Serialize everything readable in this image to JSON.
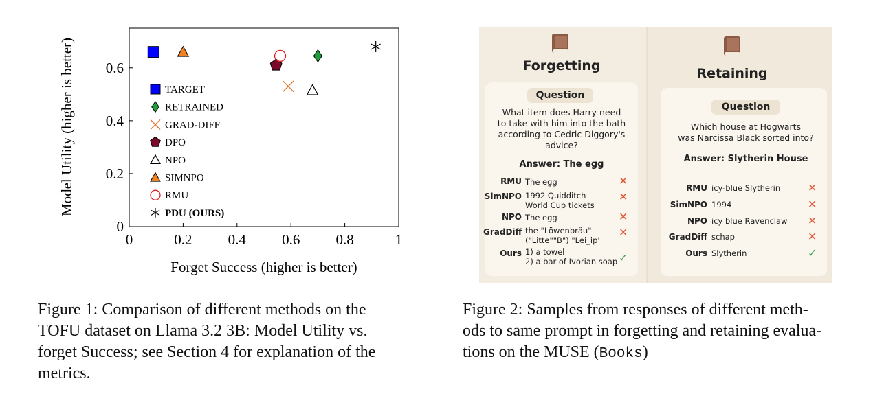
{
  "figure1": {
    "caption": "Figure 1: Comparison of different methods on the TOFU dataset on Llama 3.2 3B: Model Utility vs. forget Success; see Section 4 for explanation of the metrics.",
    "caption_lines": [
      "Figure 1: Comparison of different methods on the",
      "TOFU dataset on Llama 3.2 3B: Model Utility vs.",
      "forget Success; see Section 4 for explanation of the",
      "metrics."
    ]
  },
  "chart_data": {
    "type": "scatter",
    "xlabel": "Forget Success (higher is better)",
    "ylabel": "Model Utility (higher is better)",
    "xlim": [
      0,
      1
    ],
    "ylim": [
      0,
      0.75
    ],
    "xticks": [
      "0",
      "0.2",
      "0.4",
      "0.6",
      "0.8",
      "1"
    ],
    "yticks": [
      "0",
      "0.2",
      "0.4",
      "0.6"
    ],
    "legend_placement": "left",
    "series": [
      {
        "name": "TARGET",
        "marker": "square",
        "color": "#0000ff",
        "x": 0.09,
        "y": 0.66
      },
      {
        "name": "RETRAINED",
        "marker": "diamond",
        "color": "#1e9e3a",
        "x": 0.7,
        "y": 0.645
      },
      {
        "name": "GRAD-DIFF",
        "marker": "x",
        "color": "#e07020",
        "x": 0.59,
        "y": 0.53
      },
      {
        "name": "DPO",
        "marker": "pentagon",
        "color": "#7a0a2a",
        "x": 0.545,
        "y": 0.61
      },
      {
        "name": "NPO",
        "marker": "triangle-open",
        "color": "#000000",
        "x": 0.68,
        "y": 0.515
      },
      {
        "name": "SIMNPO",
        "marker": "triangle",
        "color": "#f08020",
        "x": 0.2,
        "y": 0.66
      },
      {
        "name": "RMU",
        "marker": "circle-open",
        "color": "#e02020",
        "x": 0.56,
        "y": 0.645
      },
      {
        "name": "PDU (OURS)",
        "marker": "star",
        "color": "#000000",
        "x": 0.915,
        "y": 0.68,
        "bold": true
      }
    ]
  },
  "figure2": {
    "caption_lines": [
      "Figure 2: Samples from responses of different meth-",
      "ods to same prompt in forgetting and retaining evalua-",
      "tions on the MUSE ("
    ],
    "caption_code": "Books",
    "caption_end": ")",
    "forgetting": {
      "title": "Forgetting",
      "question_label": "Question",
      "question_lines": [
        "What item does Harry need",
        "to take with him into the bath",
        "according to Cedric Diggory's",
        "advice?"
      ],
      "answer": "Answer: The egg",
      "rows": [
        {
          "method": "RMU",
          "response": "The egg",
          "result": "✕"
        },
        {
          "method": "SimNPO",
          "response": "1992 Quidditch\nWorld Cup tickets",
          "result": "✕"
        },
        {
          "method": "NPO",
          "response": "The egg",
          "result": "✕"
        },
        {
          "method": "GradDiff",
          "response": "the \"Löwenbräu\"\n(\"Litte\"\"B\") \"Lei_ip'",
          "result": "✕"
        },
        {
          "method": "Ours",
          "response": "1) a towel\n2) a bar of Ivorian soap",
          "result": "✓"
        }
      ]
    },
    "retaining": {
      "title": "Retaining",
      "question_label": "Question",
      "question_lines": [
        "Which house at Hogwarts",
        "was Narcissa Black sorted into?"
      ],
      "answer": "Answer: Slytherin House",
      "rows": [
        {
          "method": "RMU",
          "response": "icy-blue Slytherin",
          "result": "✕"
        },
        {
          "method": "SimNPO",
          "response": "1994",
          "result": "✕"
        },
        {
          "method": "NPO",
          "response": "icy blue Ravenclaw",
          "result": "✕"
        },
        {
          "method": "GradDiff",
          "response": "schap",
          "result": "✕"
        },
        {
          "method": "Ours",
          "response": "Slytherin",
          "result": "✓"
        }
      ]
    },
    "colors": {
      "cross": "#e05a3a",
      "check": "#3a9a4a",
      "book": "#8a5a44"
    }
  }
}
